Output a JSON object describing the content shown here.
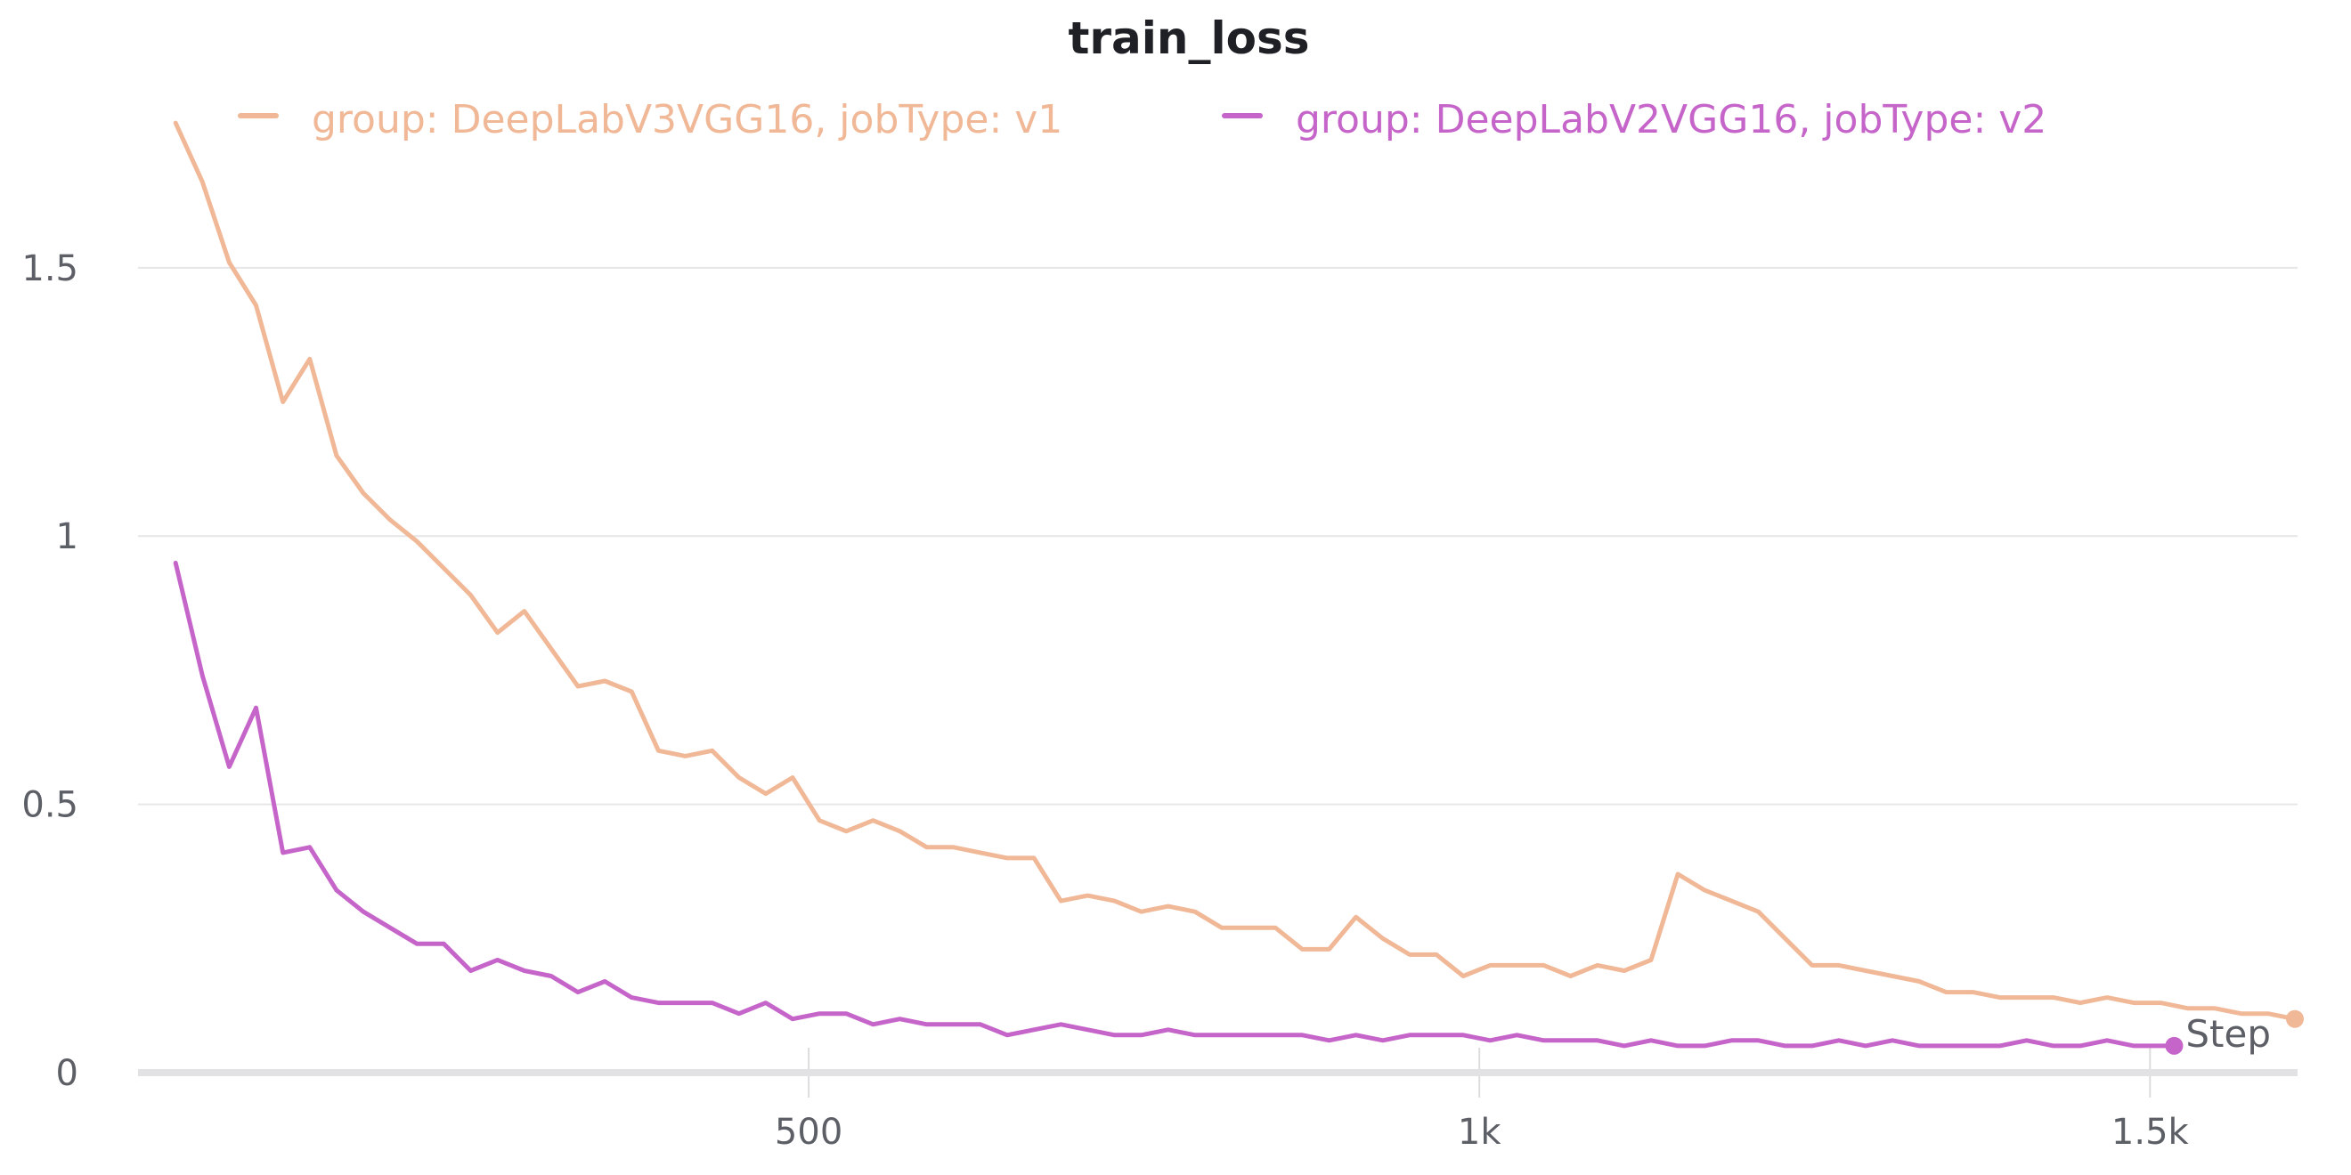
{
  "chart_data": {
    "type": "line",
    "title": "train_loss",
    "xlabel": "Step",
    "ylabel": "",
    "xlim": [
      0,
      1610
    ],
    "ylim": [
      0,
      1.8
    ],
    "x_ticks": [
      {
        "value": 500,
        "label": "500"
      },
      {
        "value": 1000,
        "label": "1k"
      },
      {
        "value": 1500,
        "label": "1.5k"
      }
    ],
    "y_ticks": [
      {
        "value": 0,
        "label": "0"
      },
      {
        "value": 0.5,
        "label": "0.5"
      },
      {
        "value": 1,
        "label": "1"
      },
      {
        "value": 1.5,
        "label": "1.5"
      }
    ],
    "grid": true,
    "legend_position": "top",
    "series": [
      {
        "name": "group: DeepLabV3VGG16, jobType: v1",
        "color": "#f0b896",
        "x": [
          28,
          48,
          68,
          88,
          108,
          128,
          148,
          168,
          188,
          208,
          228,
          248,
          268,
          288,
          308,
          328,
          348,
          368,
          388,
          408,
          428,
          448,
          468,
          488,
          508,
          528,
          548,
          568,
          588,
          608,
          628,
          648,
          668,
          688,
          708,
          728,
          748,
          768,
          788,
          808,
          828,
          848,
          868,
          888,
          908,
          928,
          948,
          968,
          988,
          1008,
          1028,
          1048,
          1068,
          1088,
          1108,
          1128,
          1148,
          1168,
          1188,
          1208,
          1228,
          1248,
          1268,
          1288,
          1308,
          1328,
          1348,
          1368,
          1388,
          1408,
          1428,
          1448,
          1468,
          1488,
          1508,
          1528,
          1548,
          1568,
          1588,
          1608
        ],
        "y": [
          1.77,
          1.66,
          1.51,
          1.43,
          1.25,
          1.33,
          1.15,
          1.08,
          1.03,
          0.99,
          0.94,
          0.89,
          0.82,
          0.86,
          0.79,
          0.72,
          0.73,
          0.71,
          0.6,
          0.59,
          0.6,
          0.55,
          0.52,
          0.55,
          0.47,
          0.45,
          0.47,
          0.45,
          0.42,
          0.42,
          0.41,
          0.4,
          0.4,
          0.32,
          0.33,
          0.32,
          0.3,
          0.31,
          0.3,
          0.27,
          0.27,
          0.27,
          0.23,
          0.23,
          0.29,
          0.25,
          0.22,
          0.22,
          0.18,
          0.2,
          0.2,
          0.2,
          0.18,
          0.2,
          0.19,
          0.21,
          0.37,
          0.34,
          0.32,
          0.3,
          0.25,
          0.2,
          0.2,
          0.19,
          0.18,
          0.17,
          0.15,
          0.15,
          0.14,
          0.14,
          0.14,
          0.13,
          0.14,
          0.13,
          0.13,
          0.12,
          0.12,
          0.11,
          0.11,
          0.1
        ]
      },
      {
        "name": "group: DeepLabV2VGG16, jobType: v2",
        "color": "#c665c9",
        "x": [
          28,
          48,
          68,
          88,
          108,
          128,
          148,
          168,
          188,
          208,
          228,
          248,
          268,
          288,
          308,
          328,
          348,
          368,
          388,
          408,
          428,
          448,
          468,
          488,
          508,
          528,
          548,
          568,
          588,
          608,
          628,
          648,
          668,
          688,
          708,
          728,
          748,
          768,
          788,
          808,
          828,
          848,
          868,
          888,
          908,
          928,
          948,
          968,
          988,
          1008,
          1028,
          1048,
          1068,
          1088,
          1108,
          1128,
          1148,
          1168,
          1188,
          1208,
          1228,
          1248,
          1268,
          1288,
          1308,
          1328,
          1348,
          1368,
          1388,
          1408,
          1428,
          1448,
          1468,
          1488,
          1508,
          1518
        ],
        "y": [
          0.95,
          0.74,
          0.57,
          0.68,
          0.41,
          0.42,
          0.34,
          0.3,
          0.27,
          0.24,
          0.24,
          0.19,
          0.21,
          0.19,
          0.18,
          0.15,
          0.17,
          0.14,
          0.13,
          0.13,
          0.13,
          0.11,
          0.13,
          0.1,
          0.11,
          0.11,
          0.09,
          0.1,
          0.09,
          0.09,
          0.09,
          0.07,
          0.08,
          0.09,
          0.08,
          0.07,
          0.07,
          0.08,
          0.07,
          0.07,
          0.07,
          0.07,
          0.07,
          0.06,
          0.07,
          0.06,
          0.07,
          0.07,
          0.07,
          0.06,
          0.07,
          0.06,
          0.06,
          0.06,
          0.05,
          0.06,
          0.05,
          0.05,
          0.06,
          0.06,
          0.05,
          0.05,
          0.06,
          0.05,
          0.06,
          0.05,
          0.05,
          0.05,
          0.05,
          0.06,
          0.05,
          0.05,
          0.06,
          0.05,
          0.05,
          0.05
        ]
      }
    ]
  }
}
